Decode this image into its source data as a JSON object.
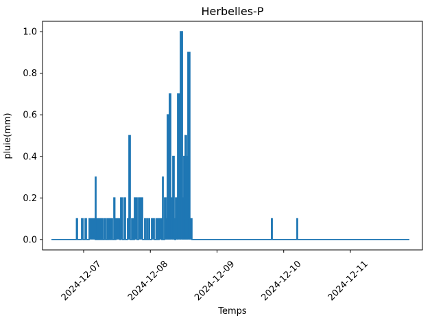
{
  "figure": {
    "title": "Herbelles-P",
    "xlabel": "Temps",
    "ylabel": "pluie(mm)"
  },
  "chart_data": {
    "type": "line",
    "title": "Herbelles-P",
    "xlabel": "Temps",
    "ylabel": "pluie(mm)",
    "line_color": "#1f77b4",
    "background_color": "#ffffff",
    "spine_color": "#000000",
    "grid": false,
    "legend": false,
    "ylim": [
      -0.05,
      1.05
    ],
    "yticks": [
      0.0,
      0.2,
      0.4,
      0.6,
      0.8,
      1.0
    ],
    "ytick_labels": [
      "0.0",
      "0.2",
      "0.4",
      "0.6",
      "0.8",
      "1.0"
    ],
    "x_unit": "days since 2024-12-06 00:00",
    "xlim_days": [
      0.383,
      6.08
    ],
    "xticks_days": [
      1,
      2,
      3,
      4,
      5
    ],
    "xtick_labels": [
      "2024-12-07",
      "2024-12-08",
      "2024-12-09",
      "2024-12-10",
      "2024-12-11"
    ],
    "xtick_rotation_deg": 45,
    "series": {
      "name": "pluie",
      "baseline_value": 0.0,
      "start_day": 0.517,
      "end_day": 5.885,
      "max_value_mm": 1.0,
      "rain_segments_day_start_day_end_mm": [
        [
          0.892,
          0.907,
          0.1
        ],
        [
          0.969,
          0.99,
          0.1
        ],
        [
          1.021,
          1.041,
          0.1
        ],
        [
          1.082,
          1.288,
          0.1
        ],
        [
          1.175,
          1.185,
          0.3
        ],
        [
          1.309,
          1.329,
          0.1
        ],
        [
          1.35,
          1.365,
          0.1
        ],
        [
          1.381,
          1.401,
          0.1
        ],
        [
          1.412,
          1.432,
          0.1
        ],
        [
          1.453,
          1.468,
          0.2
        ],
        [
          1.483,
          1.545,
          0.1
        ],
        [
          1.555,
          1.581,
          0.2
        ],
        [
          1.607,
          1.627,
          0.2
        ],
        [
          1.658,
          1.679,
          0.1
        ],
        [
          1.679,
          1.699,
          0.5
        ],
        [
          1.72,
          1.73,
          0.1
        ],
        [
          1.745,
          1.756,
          0.1
        ],
        [
          1.761,
          1.802,
          0.2
        ],
        [
          1.823,
          1.884,
          0.2
        ],
        [
          1.915,
          1.926,
          0.1
        ],
        [
          1.946,
          1.957,
          0.1
        ],
        [
          1.977,
          1.988,
          0.1
        ],
        [
          2.018,
          2.059,
          0.1
        ],
        [
          2.085,
          2.095,
          0.1
        ],
        [
          2.111,
          2.121,
          0.1
        ],
        [
          2.131,
          2.172,
          0.1
        ],
        [
          2.183,
          2.193,
          0.3
        ],
        [
          2.213,
          2.234,
          0.2
        ],
        [
          2.234,
          2.254,
          0.1
        ],
        [
          2.254,
          2.275,
          0.6
        ],
        [
          2.275,
          2.285,
          0.2
        ],
        [
          2.285,
          2.306,
          0.7
        ],
        [
          2.306,
          2.337,
          0.2
        ],
        [
          2.337,
          2.357,
          0.4
        ],
        [
          2.357,
          2.368,
          0.1
        ],
        [
          2.378,
          2.409,
          0.2
        ],
        [
          2.409,
          2.45,
          0.7
        ],
        [
          2.45,
          2.481,
          1.0
        ],
        [
          2.481,
          2.501,
          0.2
        ],
        [
          2.501,
          2.522,
          0.4
        ],
        [
          2.522,
          2.542,
          0.5
        ],
        [
          2.542,
          2.563,
          0.4
        ],
        [
          2.563,
          2.593,
          0.9
        ],
        [
          2.593,
          2.624,
          0.1
        ],
        [
          3.817,
          3.828,
          0.1
        ],
        [
          4.198,
          4.208,
          0.1
        ]
      ]
    }
  }
}
